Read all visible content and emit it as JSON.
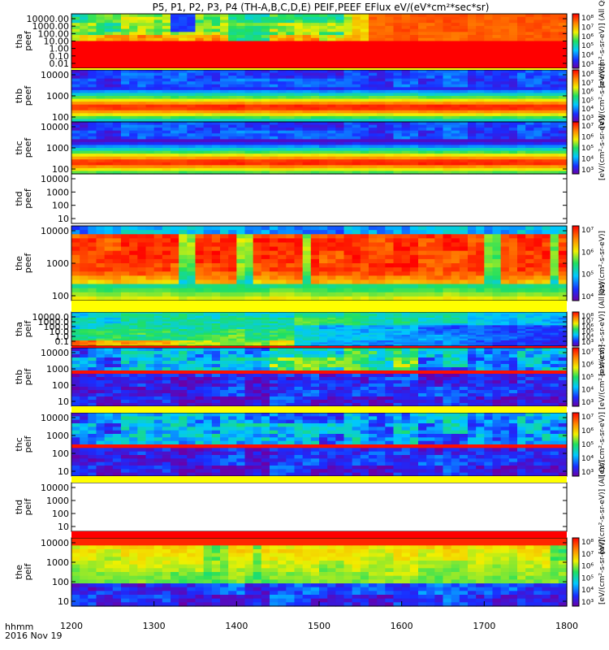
{
  "title": "P5, P1, P2, P3, P4 (TH-A,B,C,D,E) PEIF,PEEF EFlux eV/(eV*cm²*sec*sr)",
  "time_axis": {
    "label": "hhmm",
    "date": "2016 Nov 19",
    "ticks": [
      "1200",
      "1300",
      "1400",
      "1500",
      "1600",
      "1700",
      "1800"
    ]
  },
  "chart_data": [
    {
      "type": "heatmap",
      "name": "tha peef",
      "ylabel_lines": [
        "tha",
        "peef"
      ],
      "yticks": [
        "10000.00",
        "1000.00",
        "100.00",
        "10.00",
        "1.00",
        "0.10",
        "0.01"
      ],
      "cbar_ticks": [
        "10⁸",
        "10⁷",
        "10⁶",
        "10⁵",
        "10⁴",
        "10³"
      ],
      "cbar_label": "[eV/(cm²-s-sr-eV)] (All Qs)",
      "pattern": "tha"
    },
    {
      "type": "heatmap",
      "name": "thb peef",
      "ylabel_lines": [
        "thb",
        "peef"
      ],
      "yticks": [
        "10000",
        "1000",
        "100"
      ],
      "cbar_ticks": [
        "10⁸",
        "10⁷",
        "10⁶",
        "10⁵",
        "10⁴",
        "10³"
      ],
      "cbar_label": "[eV/(cm²-s-sr-eV)]",
      "pattern": "thb"
    },
    {
      "type": "heatmap",
      "name": "thc peef",
      "ylabel_lines": [
        "thc",
        "peef"
      ],
      "yticks": [
        "10000",
        "1000",
        "100"
      ],
      "cbar_ticks": [
        "10⁷",
        "10⁶",
        "10⁵",
        "10⁴",
        "10³"
      ],
      "cbar_label": "[eV/(cm²-s-sr-eV)]",
      "pattern": "thc"
    },
    {
      "type": "heatmap",
      "name": "thd peef",
      "ylabel_lines": [
        "thd",
        "peef"
      ],
      "yticks": [
        "10000",
        "1000",
        "100",
        "10"
      ],
      "cbar_ticks": [],
      "cbar_label": "",
      "pattern": "empty"
    },
    {
      "type": "heatmap",
      "name": "the peef",
      "ylabel_lines": [
        "the",
        "peef"
      ],
      "yticks": [
        "10000",
        "1000",
        "100"
      ],
      "cbar_ticks": [
        "10⁷",
        "10⁶",
        "10⁵",
        "10⁴"
      ],
      "cbar_label": "[eV/(cm²-s-sr-eV)]",
      "pattern": "the_e"
    },
    {
      "type": "heatmap",
      "name": "tha peif",
      "ylabel_lines": [
        "tha",
        "peif"
      ],
      "yticks": [
        "10000.0",
        "1000.0",
        "100.0",
        "10.0",
        "1.0",
        "0.1"
      ],
      "cbar_ticks": [
        "10⁸",
        "10⁷",
        "10⁶",
        "10⁵",
        "10⁴",
        "10³"
      ],
      "cbar_label": "[eV/(cm²-s-sr-eV)] (All Qs)",
      "pattern": "tha_i"
    },
    {
      "type": "heatmap",
      "name": "thb peif",
      "ylabel_lines": [
        "thb",
        "peif"
      ],
      "yticks": [
        "10000",
        "1000",
        "100",
        "10"
      ],
      "cbar_ticks": [
        "10⁷",
        "10⁶",
        "10⁵",
        "10⁴",
        "10³"
      ],
      "cbar_label": "[eV/(cm²-s-sr-eV)]",
      "pattern": "thb_i"
    },
    {
      "type": "heatmap",
      "name": "thc peif",
      "ylabel_lines": [
        "thc",
        "peif"
      ],
      "yticks": [
        "10000",
        "1000",
        "100",
        "10"
      ],
      "cbar_ticks": [
        "10⁷",
        "10⁶",
        "10⁵",
        "10⁴",
        "10³"
      ],
      "cbar_label": "[eV/(cm²-s-sr-eV)]",
      "pattern": "thc_i"
    },
    {
      "type": "heatmap",
      "name": "thd peif",
      "ylabel_lines": [
        "thd",
        "peif"
      ],
      "yticks": [
        "10000",
        "1000",
        "100",
        "10"
      ],
      "cbar_ticks": [],
      "cbar_label": "[eV/(cm²-s-sr-eV)] (All Qs)",
      "pattern": "empty"
    },
    {
      "type": "heatmap",
      "name": "the peif",
      "ylabel_lines": [
        "the",
        "peif"
      ],
      "yticks": [
        "10000",
        "1000",
        "100",
        "10"
      ],
      "cbar_ticks": [
        "10⁸",
        "10⁷",
        "10⁶",
        "10⁵",
        "10⁴",
        "10³"
      ],
      "cbar_label": "[eV/(cm²-s-sr-eV)]",
      "pattern": "the_i"
    }
  ]
}
